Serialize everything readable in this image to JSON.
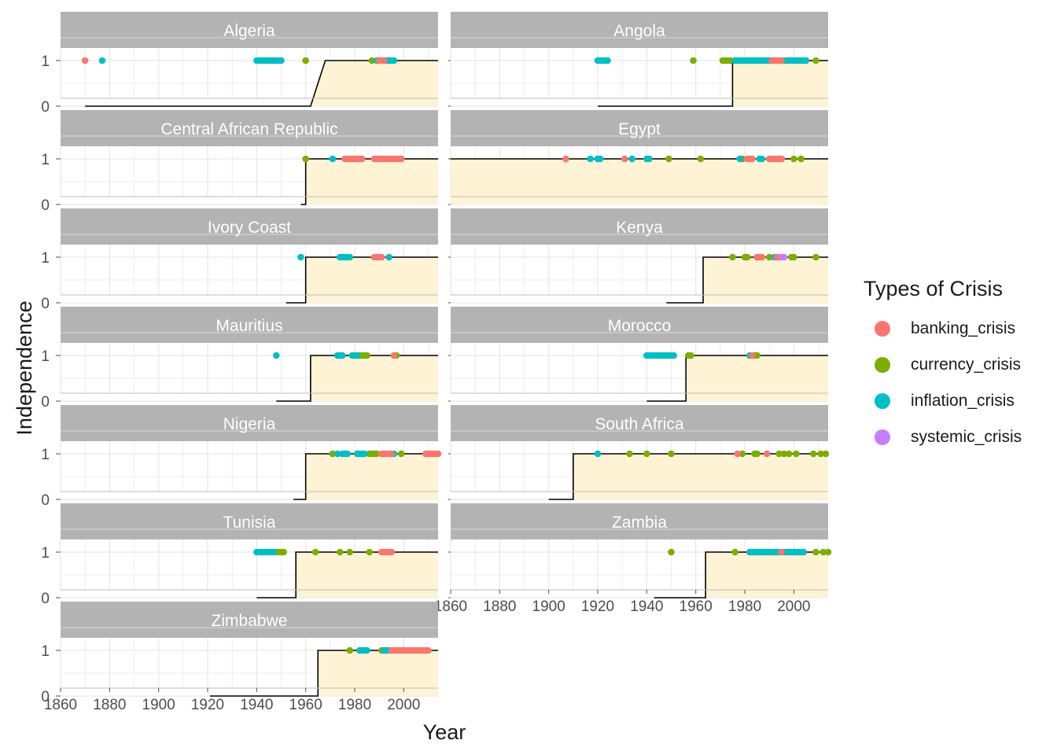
{
  "chart_data": {
    "type": "line",
    "xlabel": "Year",
    "ylabel": "Independence",
    "xlim": [
      1860,
      2014
    ],
    "ylim": [
      0,
      1
    ],
    "x_ticks": [
      1860,
      1880,
      1900,
      1920,
      1940,
      1960,
      1980,
      2000
    ],
    "y_ticks": [
      0,
      1
    ],
    "grid": true,
    "legend": {
      "title": "Types of Crisis",
      "placement": "right",
      "entries": [
        {
          "key": "banking_crisis",
          "label": "banking_crisis",
          "color": "#F8766D"
        },
        {
          "key": "currency_crisis",
          "label": "currency_crisis",
          "color": "#7CAE00"
        },
        {
          "key": "inflation_crisis",
          "label": "inflation_crisis",
          "color": "#00BFC4"
        },
        {
          "key": "systemic_crisis",
          "label": "systemic_crisis",
          "color": "#C77CFF"
        }
      ]
    },
    "colors": {
      "strip": "#b3b3b3",
      "fill": "#fef3d4",
      "line": "#000000",
      "grid": "#e6e6e6"
    },
    "panels": [
      {
        "country": "Algeria",
        "start": 1870,
        "independence": 1962,
        "ramp_end": 1968,
        "crises": {
          "banking_crisis": [
            1870,
            1990,
            1991,
            1992
          ],
          "currency_crisis": [
            1960,
            1987,
            1994
          ],
          "inflation_crisis": [
            1877,
            1940,
            1941,
            1942,
            1943,
            1944,
            1945,
            1946,
            1947,
            1948,
            1949,
            1950,
            1989,
            1993,
            1994,
            1995,
            1996
          ],
          "systemic_crisis": []
        }
      },
      {
        "country": "Angola",
        "start": 1920,
        "independence": 1975,
        "crises": {
          "banking_crisis": [
            1991,
            1992,
            1993,
            1994,
            1995
          ],
          "currency_crisis": [
            1959,
            1971,
            1972,
            1973,
            1974,
            2009
          ],
          "inflation_crisis": [
            1920,
            1921,
            1922,
            1923,
            1924,
            1976,
            1977,
            1978,
            1979,
            1980,
            1981,
            1982,
            1983,
            1984,
            1985,
            1986,
            1987,
            1988,
            1989,
            1990,
            1996,
            1997,
            1998,
            1999,
            2000,
            2001,
            2002,
            2003,
            2004,
            2005
          ]
        }
      },
      {
        "country": "Central African Republic",
        "start": 1958,
        "independence": 1960,
        "crises": {
          "banking_crisis": [
            1976,
            1977,
            1978,
            1979,
            1980,
            1981,
            1982,
            1983,
            1988,
            1989,
            1990,
            1991,
            1992,
            1993,
            1994,
            1995,
            1996,
            1997,
            1998,
            1999
          ],
          "currency_crisis": [
            1960
          ],
          "inflation_crisis": [
            1971,
            1981
          ]
        }
      },
      {
        "country": "Egypt",
        "start": 1860,
        "independence": 1860,
        "crises": {
          "banking_crisis": [
            1907,
            1931,
            1981,
            1982,
            1983,
            1990,
            1991,
            1992,
            1993,
            1994,
            1995
          ],
          "currency_crisis": [
            1949,
            1962,
            1979,
            2000,
            2003
          ],
          "inflation_crisis": [
            1917,
            1920,
            1921,
            1934,
            1940,
            1941,
            1978,
            1986,
            1987
          ]
        }
      },
      {
        "country": "Ivory Coast",
        "start": 1952,
        "independence": 1960,
        "crises": {
          "banking_crisis": [
            1988,
            1989,
            1990,
            1991
          ],
          "currency_crisis": [],
          "inflation_crisis": [
            1958,
            1974,
            1975,
            1976,
            1977,
            1978,
            1994
          ]
        }
      },
      {
        "country": "Kenya",
        "start": 1948,
        "independence": 1963,
        "crises": {
          "banking_crisis": [
            1985,
            1986,
            1987,
            1993,
            1994
          ],
          "currency_crisis": [
            1975,
            1980,
            1981,
            1990,
            1999,
            2000,
            2009
          ],
          "inflation_crisis": [
            1985,
            1992
          ],
          "systemic_crisis": [
            1995,
            1996
          ]
        }
      },
      {
        "country": "Mauritius",
        "start": 1948,
        "independence": 1962,
        "crises": {
          "banking_crisis": [
            1996
          ],
          "currency_crisis": [
            1981,
            1982,
            1983,
            1984,
            1985,
            1997
          ],
          "inflation_crisis": [
            1948,
            1973,
            1974,
            1975,
            1979,
            1980,
            1981
          ]
        }
      },
      {
        "country": "Morocco",
        "start": 1940,
        "independence": 1956,
        "crises": {
          "banking_crisis": [
            1983
          ],
          "currency_crisis": [
            1946,
            1957,
            1958,
            1984,
            1985
          ],
          "inflation_crisis": [
            1940,
            1941,
            1942,
            1943,
            1944,
            1945,
            1947,
            1948,
            1949,
            1950,
            1951,
            1982
          ]
        }
      },
      {
        "country": "Nigeria",
        "start": 1955,
        "independence": 1960,
        "crises": {
          "banking_crisis": [
            1991,
            1992,
            1993,
            1994,
            1995,
            2009,
            2010,
            2011,
            2012,
            2013,
            2014
          ],
          "currency_crisis": [
            1971,
            1986,
            1987,
            1988,
            1989,
            1999
          ],
          "inflation_crisis": [
            1973,
            1975,
            1976,
            1977,
            1981,
            1982,
            1983,
            1984,
            1995,
            1996
          ]
        }
      },
      {
        "country": "South Africa",
        "start": 1900,
        "independence": 1910,
        "crises": {
          "banking_crisis": [
            1977,
            1989
          ],
          "currency_crisis": [
            1933,
            1940,
            1950,
            1979,
            1984,
            1985,
            1994,
            1996,
            1998,
            2001,
            2008,
            2011,
            2013
          ],
          "inflation_crisis": [
            1920
          ]
        }
      },
      {
        "country": "Tunisia",
        "start": 1940,
        "independence": 1956,
        "crises": {
          "banking_crisis": [
            1991,
            1992,
            1993,
            1994,
            1995
          ],
          "currency_crisis": [
            1948,
            1949,
            1950,
            1951,
            1964,
            1974,
            1978,
            1986
          ],
          "inflation_crisis": [
            1940,
            1941,
            1942,
            1943,
            1944,
            1945,
            1946,
            1947
          ]
        }
      },
      {
        "country": "Zambia",
        "start": 1943,
        "independence": 1964,
        "crises": {
          "banking_crisis": [
            1995
          ],
          "currency_crisis": [
            1950,
            1976,
            1983,
            1985,
            2009,
            2012,
            2014
          ],
          "inflation_crisis": [
            1982,
            1983,
            1984,
            1985,
            1986,
            1987,
            1988,
            1989,
            1990,
            1991,
            1992,
            1993,
            1994,
            1996,
            1997,
            1998,
            1999,
            2000,
            2001,
            2002,
            2003,
            2004
          ]
        }
      },
      {
        "country": "Zimbabwe",
        "start": 1921,
        "independence": 1965,
        "crises": {
          "banking_crisis": [
            1995,
            1996,
            1997,
            1998,
            1999,
            2000,
            2001,
            2002,
            2003,
            2004,
            2005,
            2006,
            2007,
            2008,
            2009,
            2010
          ],
          "currency_crisis": [
            1978,
            1983,
            1991
          ],
          "inflation_crisis": [
            1982,
            1984,
            1985,
            1992,
            1993,
            1994
          ]
        }
      }
    ]
  }
}
